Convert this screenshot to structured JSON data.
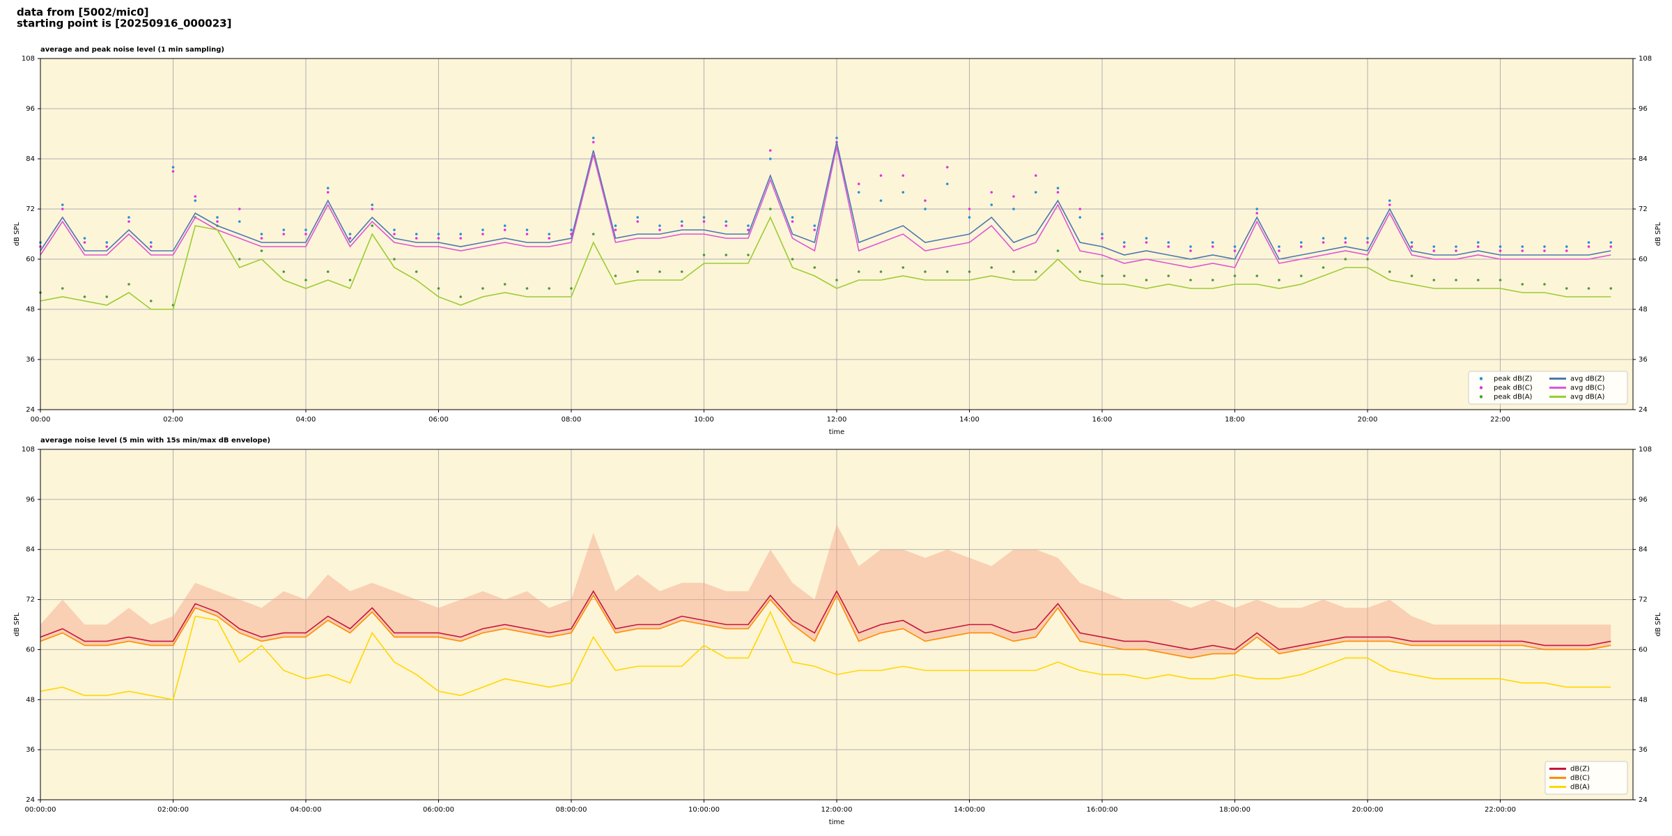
{
  "header": {
    "source": "data from [5002/mic0]",
    "start": "starting point is [20250916_000023]"
  },
  "chart_data": [
    {
      "type": "line",
      "title": "average and peak noise level (1 min sampling)",
      "xlabel": "time",
      "ylabel": "dB SPL",
      "x": [
        0,
        20,
        40,
        60,
        80,
        100,
        120,
        140,
        160,
        180,
        200,
        220,
        240,
        260,
        280,
        300,
        320,
        340,
        360,
        380,
        400,
        420,
        440,
        460,
        480,
        500,
        520,
        540,
        560,
        580,
        600,
        620,
        640,
        660,
        680,
        700,
        720,
        740,
        760,
        780,
        800,
        820,
        840,
        860,
        880,
        900,
        920,
        940,
        960,
        980,
        1000,
        1020,
        1040,
        1060,
        1080,
        1100,
        1120,
        1140,
        1160,
        1180,
        1200,
        1220,
        1240,
        1260,
        1280,
        1300,
        1320,
        1340,
        1360,
        1380,
        1400,
        1420
      ],
      "xlim": [
        0,
        1440
      ],
      "xticks": [
        {
          "value": 0,
          "label": "00:00"
        },
        {
          "value": 120,
          "label": "02:00"
        },
        {
          "value": 240,
          "label": "04:00"
        },
        {
          "value": 360,
          "label": "06:00"
        },
        {
          "value": 480,
          "label": "08:00"
        },
        {
          "value": 600,
          "label": "10:00"
        },
        {
          "value": 720,
          "label": "12:00"
        },
        {
          "value": 840,
          "label": "14:00"
        },
        {
          "value": 960,
          "label": "16:00"
        },
        {
          "value": 1080,
          "label": "18:00"
        },
        {
          "value": 1200,
          "label": "20:00"
        },
        {
          "value": 1320,
          "label": "22:00"
        }
      ],
      "ylim": [
        24,
        108
      ],
      "yticks": [
        24,
        36,
        48,
        60,
        72,
        84,
        96,
        108
      ],
      "grid": true,
      "legend": "lower right",
      "legend_columns": 2,
      "series": [
        {
          "name": "peak dB(Z)",
          "style": "points",
          "color": "#1f8fd8",
          "values": [
            64,
            73,
            65,
            64,
            70,
            64,
            82,
            74,
            70,
            69,
            66,
            67,
            67,
            77,
            66,
            73,
            67,
            66,
            66,
            66,
            67,
            68,
            67,
            66,
            67,
            89,
            68,
            70,
            68,
            69,
            70,
            69,
            68,
            84,
            70,
            68,
            89,
            76,
            74,
            76,
            72,
            78,
            70,
            73,
            72,
            76,
            77,
            70,
            66,
            64,
            65,
            64,
            63,
            64,
            63,
            72,
            63,
            64,
            65,
            65,
            65,
            74,
            64,
            63,
            63,
            64,
            63,
            63,
            63,
            63,
            64,
            64
          ]
        },
        {
          "name": "peak dB(C)",
          "style": "points",
          "color": "#e030e0",
          "values": [
            63,
            72,
            64,
            63,
            69,
            63,
            81,
            75,
            69,
            72,
            65,
            66,
            66,
            76,
            65,
            72,
            66,
            65,
            65,
            65,
            66,
            67,
            66,
            65,
            66,
            88,
            67,
            69,
            67,
            68,
            69,
            68,
            67,
            86,
            69,
            67,
            88,
            78,
            80,
            80,
            74,
            82,
            72,
            76,
            75,
            80,
            76,
            72,
            65,
            63,
            64,
            63,
            62,
            63,
            62,
            71,
            62,
            63,
            64,
            64,
            64,
            73,
            63,
            62,
            62,
            63,
            62,
            62,
            62,
            62,
            63,
            63
          ]
        },
        {
          "name": "peak dB(A)",
          "style": "points",
          "color": "#4a9a3a",
          "values": [
            52,
            53,
            51,
            51,
            54,
            50,
            49,
            70,
            68,
            60,
            62,
            57,
            55,
            57,
            55,
            68,
            60,
            57,
            53,
            51,
            53,
            54,
            53,
            53,
            53,
            66,
            56,
            57,
            57,
            57,
            61,
            61,
            61,
            72,
            60,
            58,
            55,
            57,
            57,
            58,
            57,
            57,
            57,
            58,
            57,
            57,
            62,
            57,
            56,
            56,
            55,
            56,
            55,
            55,
            56,
            56,
            55,
            56,
            58,
            60,
            60,
            57,
            56,
            55,
            55,
            55,
            55,
            54,
            54,
            53,
            53,
            53
          ]
        },
        {
          "name": "avg dB(Z)",
          "style": "line",
          "color": "#4b78b0",
          "values": [
            62,
            70,
            62,
            62,
            67,
            62,
            62,
            71,
            68,
            66,
            64,
            64,
            64,
            74,
            64,
            70,
            65,
            64,
            64,
            63,
            64,
            65,
            64,
            64,
            65,
            86,
            65,
            66,
            66,
            67,
            67,
            66,
            66,
            80,
            66,
            64,
            88,
            64,
            66,
            68,
            64,
            65,
            66,
            70,
            64,
            66,
            74,
            64,
            63,
            61,
            62,
            61,
            60,
            61,
            60,
            70,
            60,
            61,
            62,
            63,
            62,
            72,
            62,
            61,
            61,
            62,
            61,
            61,
            61,
            61,
            61,
            62
          ]
        },
        {
          "name": "avg dB(C)",
          "style": "line",
          "color": "#dd55d5",
          "values": [
            61,
            69,
            61,
            61,
            66,
            61,
            61,
            70,
            67,
            65,
            63,
            63,
            63,
            73,
            63,
            69,
            64,
            63,
            63,
            62,
            63,
            64,
            63,
            63,
            64,
            85,
            64,
            65,
            65,
            66,
            66,
            65,
            65,
            79,
            65,
            62,
            87,
            62,
            64,
            66,
            62,
            63,
            64,
            68,
            62,
            64,
            73,
            62,
            61,
            59,
            60,
            59,
            58,
            59,
            58,
            69,
            59,
            60,
            61,
            62,
            61,
            71,
            61,
            60,
            60,
            61,
            60,
            60,
            60,
            60,
            60,
            61
          ]
        },
        {
          "name": "avg dB(A)",
          "style": "line",
          "color": "#9acd32",
          "values": [
            50,
            51,
            50,
            49,
            52,
            48,
            48,
            68,
            67,
            58,
            60,
            55,
            53,
            55,
            53,
            66,
            58,
            55,
            51,
            49,
            51,
            52,
            51,
            51,
            51,
            64,
            54,
            55,
            55,
            55,
            59,
            59,
            59,
            70,
            58,
            56,
            53,
            55,
            55,
            56,
            55,
            55,
            55,
            56,
            55,
            55,
            60,
            55,
            54,
            54,
            53,
            54,
            53,
            53,
            54,
            54,
            53,
            54,
            56,
            58,
            58,
            55,
            54,
            53,
            53,
            53,
            53,
            52,
            52,
            51,
            51,
            51
          ]
        }
      ]
    },
    {
      "type": "line",
      "title": "average noise level (5 min with 15s min/max dB envelope)",
      "xlabel": "time",
      "ylabel": "dB SPL",
      "x": [
        0,
        20,
        40,
        60,
        80,
        100,
        120,
        140,
        160,
        180,
        200,
        220,
        240,
        260,
        280,
        300,
        320,
        340,
        360,
        380,
        400,
        420,
        440,
        460,
        480,
        500,
        520,
        540,
        560,
        580,
        600,
        620,
        640,
        660,
        680,
        700,
        720,
        740,
        760,
        780,
        800,
        820,
        840,
        860,
        880,
        900,
        920,
        940,
        960,
        980,
        1000,
        1020,
        1040,
        1060,
        1080,
        1100,
        1120,
        1140,
        1160,
        1180,
        1200,
        1220,
        1240,
        1260,
        1280,
        1300,
        1320,
        1340,
        1360,
        1380,
        1400,
        1420
      ],
      "xlim": [
        0,
        1440
      ],
      "xticks": [
        {
          "value": 0,
          "label": "00:00:00"
        },
        {
          "value": 120,
          "label": "02:00:00"
        },
        {
          "value": 240,
          "label": "04:00:00"
        },
        {
          "value": 360,
          "label": "06:00:00"
        },
        {
          "value": 480,
          "label": "08:00:00"
        },
        {
          "value": 600,
          "label": "10:00:00"
        },
        {
          "value": 720,
          "label": "12:00:00"
        },
        {
          "value": 840,
          "label": "14:00:00"
        },
        {
          "value": 960,
          "label": "16:00:00"
        },
        {
          "value": 1080,
          "label": "18:00:00"
        },
        {
          "value": 1200,
          "label": "20:00:00"
        },
        {
          "value": 1320,
          "label": "22:00:00"
        }
      ],
      "ylim": [
        24,
        108
      ],
      "yticks": [
        24,
        36,
        48,
        60,
        72,
        84,
        96,
        108
      ],
      "grid": true,
      "legend": "lower right",
      "legend_columns": 1,
      "envelope": {
        "color": "#f4a488",
        "base": 1,
        "max": [
          66,
          72,
          66,
          66,
          70,
          66,
          68,
          76,
          74,
          72,
          70,
          74,
          72,
          78,
          74,
          76,
          74,
          72,
          70,
          72,
          74,
          72,
          74,
          70,
          72,
          88,
          74,
          78,
          74,
          76,
          76,
          74,
          74,
          84,
          76,
          72,
          90,
          80,
          84,
          84,
          82,
          84,
          82,
          80,
          84,
          84,
          82,
          76,
          74,
          72,
          72,
          72,
          70,
          72,
          70,
          72,
          70,
          70,
          72,
          70,
          70,
          72,
          68,
          66,
          66,
          66,
          66,
          66,
          66,
          66,
          66,
          66
        ]
      },
      "series": [
        {
          "name": "dB(Z)",
          "style": "line",
          "color": "#c8143c",
          "values": [
            63,
            65,
            62,
            62,
            63,
            62,
            62,
            71,
            69,
            65,
            63,
            64,
            64,
            68,
            65,
            70,
            64,
            64,
            64,
            63,
            65,
            66,
            65,
            64,
            65,
            74,
            65,
            66,
            66,
            68,
            67,
            66,
            66,
            73,
            67,
            64,
            74,
            64,
            66,
            67,
            64,
            65,
            66,
            66,
            64,
            65,
            71,
            64,
            63,
            62,
            62,
            61,
            60,
            61,
            60,
            64,
            60,
            61,
            62,
            63,
            63,
            63,
            62,
            62,
            62,
            62,
            62,
            62,
            61,
            61,
            61,
            62
          ]
        },
        {
          "name": "dB(C)",
          "style": "line",
          "color": "#ff8c00",
          "values": [
            62,
            64,
            61,
            61,
            62,
            61,
            61,
            70,
            68,
            64,
            62,
            63,
            63,
            67,
            64,
            69,
            63,
            63,
            63,
            62,
            64,
            65,
            64,
            63,
            64,
            73,
            64,
            65,
            65,
            67,
            66,
            65,
            65,
            72,
            66,
            62,
            73,
            62,
            64,
            65,
            62,
            63,
            64,
            64,
            62,
            63,
            70,
            62,
            61,
            60,
            60,
            59,
            58,
            59,
            59,
            63,
            59,
            60,
            61,
            62,
            62,
            62,
            61,
            61,
            61,
            61,
            61,
            61,
            60,
            60,
            60,
            61
          ]
        },
        {
          "name": "dB(A)",
          "style": "line",
          "color": "#ffd700",
          "values": [
            50,
            51,
            49,
            49,
            50,
            49,
            48,
            68,
            67,
            57,
            61,
            55,
            53,
            54,
            52,
            64,
            57,
            54,
            50,
            49,
            51,
            53,
            52,
            51,
            52,
            63,
            55,
            56,
            56,
            56,
            61,
            58,
            58,
            69,
            57,
            56,
            54,
            55,
            55,
            56,
            55,
            55,
            55,
            55,
            55,
            55,
            57,
            55,
            54,
            54,
            53,
            54,
            53,
            53,
            54,
            53,
            53,
            54,
            56,
            58,
            58,
            55,
            54,
            53,
            53,
            53,
            53,
            52,
            52,
            51,
            51,
            51
          ]
        }
      ]
    }
  ]
}
